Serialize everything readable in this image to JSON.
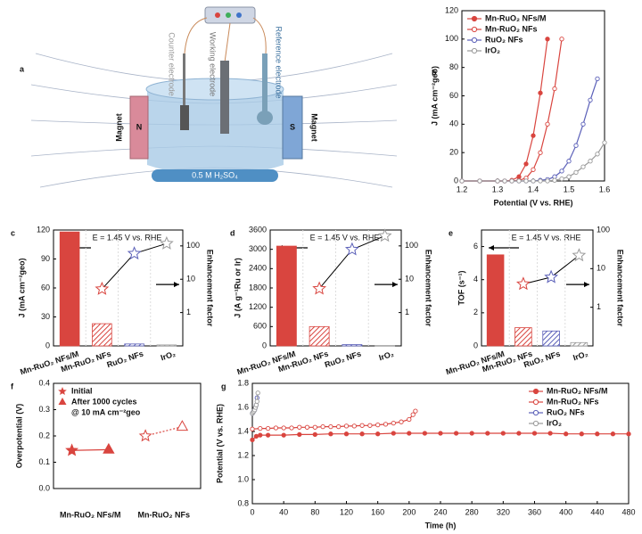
{
  "diagram": {
    "panel_label": "a",
    "counter": "Counter electrode",
    "working": "Working electrode",
    "reference": "Reference electrode",
    "magnet_left": "Magnet",
    "magnet_right": "Magnet",
    "pole_n": "N",
    "pole_s": "S",
    "electrolyte": "0.5 M H₂SO₄"
  },
  "chart_data": [
    {
      "panel_label": "b",
      "type": "line",
      "x_label": "Potential (V vs. RHE)",
      "y_label": "J (mA cm⁻²geo)",
      "x": [
        1.2,
        1.25,
        1.3,
        1.32,
        1.34,
        1.36,
        1.38,
        1.4,
        1.42,
        1.44,
        1.46,
        1.48,
        1.5,
        1.52,
        1.54,
        1.56,
        1.58,
        1.6
      ],
      "xlim": [
        1.2,
        1.6
      ],
      "xticks": [
        1.2,
        1.3,
        1.4,
        1.5,
        1.6
      ],
      "ylim": [
        0,
        120
      ],
      "yticks": [
        0,
        20,
        40,
        60,
        80,
        100,
        120
      ],
      "legend": "upper left",
      "series": [
        {
          "name": "Mn-RuO₂ NFs/M",
          "color": "#d9453f",
          "marker": "filled",
          "values": [
            0,
            0,
            0,
            0,
            0.5,
            3,
            12,
            32,
            62,
            100,
            null,
            null,
            null,
            null,
            null,
            null,
            null,
            null
          ]
        },
        {
          "name": "Mn-RuO₂ NFs",
          "color": "#d9453f",
          "marker": "open",
          "values": [
            0,
            0,
            0,
            0,
            0,
            0.5,
            2,
            8,
            20,
            40,
            65,
            100,
            null,
            null,
            null,
            null,
            null,
            null
          ]
        },
        {
          "name": "RuO₂ NFs",
          "color": "#5a5fb8",
          "marker": "open",
          "values": [
            0,
            0,
            0,
            0,
            0,
            0,
            0,
            0,
            0.5,
            1,
            3,
            7,
            14,
            25,
            40,
            57,
            72,
            null
          ]
        },
        {
          "name": "IrO₂",
          "color": "#9a9a9a",
          "marker": "open",
          "values": [
            0,
            0,
            0,
            0,
            0,
            0,
            0,
            0,
            0,
            0,
            0.5,
            1.5,
            3,
            6,
            10,
            14,
            19,
            27
          ]
        }
      ]
    },
    {
      "panel_label": "c",
      "type": "bar",
      "annotation": "E = 1.45 V vs. RHE",
      "y_label": "J (mA cm⁻²geo)",
      "y2_label": "Enhancement factor",
      "categories": [
        "Mn-RuO₂ NFs/M",
        "Mn-RuO₂ NFs",
        "RuO₂ NFs",
        "IrO₂"
      ],
      "colors": [
        "#d9453f",
        "#d9453f",
        "#5a5fb8",
        "#9a9a9a"
      ],
      "hatched": [
        false,
        true,
        true,
        true
      ],
      "ylim": [
        0,
        120
      ],
      "yticks": [
        0,
        30,
        60,
        90,
        120
      ],
      "y2lim": [
        0.1,
        300
      ],
      "y2ticks": [
        1,
        10,
        100
      ],
      "y2_scale": "log",
      "series": [
        {
          "values": [
            118,
            23,
            2,
            1
          ]
        },
        {
          "axis": "y2",
          "marker": "star",
          "values": [
            null,
            5.1,
            59,
            118
          ]
        }
      ]
    },
    {
      "panel_label": "d",
      "type": "bar",
      "annotation": "E = 1.45 V vs. RHE",
      "y_label": "J (A g⁻¹Ru or Ir)",
      "y2_label": "Enhancement factor",
      "categories": [
        "Mn-RuO₂ NFs/M",
        "Mn-RuO₂ NFs",
        "RuO₂ NFs",
        "IrO₂"
      ],
      "colors": [
        "#d9453f",
        "#d9453f",
        "#5a5fb8",
        "#9a9a9a"
      ],
      "hatched": [
        false,
        true,
        true,
        true
      ],
      "ylim": [
        0,
        3600
      ],
      "yticks": [
        0,
        600,
        1200,
        1800,
        2400,
        3000,
        3600
      ],
      "y2lim": [
        0.1,
        300
      ],
      "y2ticks": [
        1,
        10,
        100
      ],
      "y2_scale": "log",
      "series": [
        {
          "values": [
            3100,
            600,
            40,
            10
          ]
        },
        {
          "axis": "y2",
          "marker": "star",
          "values": [
            null,
            5.2,
            78,
            200
          ]
        }
      ]
    },
    {
      "panel_label": "e",
      "type": "bar",
      "annotation": "E = 1.45 V vs. RHE",
      "y_label": "TOF (s⁻¹)",
      "y2_label": "Enhancement factor",
      "categories": [
        "Mn-RuO₂ NFs/M",
        "Mn-RuO₂ NFs",
        "RuO₂ NFs",
        "IrO₂"
      ],
      "colors": [
        "#d9453f",
        "#d9453f",
        "#5a5fb8",
        "#9a9a9a"
      ],
      "hatched": [
        false,
        true,
        true,
        true
      ],
      "ylim": [
        0,
        7
      ],
      "yticks": [
        0,
        2,
        4,
        6
      ],
      "y2lim": [
        0.1,
        100
      ],
      "y2ticks": [
        1,
        10,
        100
      ],
      "y2_scale": "log",
      "series": [
        {
          "values": [
            5.5,
            1.1,
            0.9,
            0.2
          ]
        },
        {
          "axis": "y2",
          "marker": "star",
          "values": [
            null,
            4,
            6,
            22
          ]
        }
      ]
    },
    {
      "panel_label": "f",
      "type": "scatter",
      "y_label": "Overpotential (V)",
      "note": "@ 10 mA cm⁻²geo",
      "categories": [
        "Mn-RuO₂ NFs/M",
        "Mn-RuO₂ NFs"
      ],
      "filled": [
        true,
        false
      ],
      "ylim": [
        0,
        0.4
      ],
      "yticks": [
        {
          "value": 0,
          "label": "0.0"
        },
        0.1,
        0.2,
        0.3,
        0.4
      ],
      "series": [
        {
          "name": "Initial",
          "marker": "star",
          "color": "#d9453f",
          "values": [
            0.145,
            0.2
          ]
        },
        {
          "name": "After 1000 cycles",
          "marker": "triangle",
          "color": "#d9453f",
          "values": [
            0.148,
            0.235
          ]
        }
      ]
    },
    {
      "panel_label": "g",
      "type": "line",
      "x_label": "Time (h)",
      "y_label": "Potential (V vs. RHE)",
      "xlim": [
        0,
        480
      ],
      "xticks": [
        0,
        40,
        80,
        120,
        160,
        200,
        240,
        280,
        320,
        360,
        400,
        440,
        480
      ],
      "ylim": [
        0.8,
        1.8
      ],
      "yticks": [
        0.8,
        {
          "value": 1,
          "label": "1.0"
        },
        1.2,
        1.4,
        1.6,
        1.8
      ],
      "legend": "upper right",
      "series": [
        {
          "name": "Mn-RuO₂ NFs/M",
          "color": "#d9453f",
          "marker": "filled",
          "x": [
            0,
            5,
            10,
            20,
            40,
            60,
            80,
            100,
            120,
            140,
            160,
            180,
            200,
            220,
            240,
            260,
            280,
            300,
            320,
            340,
            360,
            380,
            400,
            420,
            440,
            460,
            480
          ],
          "values": [
            1.33,
            1.36,
            1.37,
            1.37,
            1.37,
            1.375,
            1.375,
            1.38,
            1.38,
            1.38,
            1.38,
            1.385,
            1.385,
            1.385,
            1.385,
            1.385,
            1.385,
            1.385,
            1.385,
            1.385,
            1.385,
            1.385,
            1.38,
            1.38,
            1.38,
            1.38,
            1.38
          ]
        },
        {
          "name": "Mn-RuO₂ NFs",
          "color": "#d9453f",
          "marker": "open",
          "x": [
            0,
            10,
            20,
            30,
            40,
            50,
            60,
            70,
            80,
            90,
            100,
            110,
            120,
            130,
            140,
            150,
            160,
            170,
            180,
            190,
            200,
            205,
            208
          ],
          "values": [
            1.42,
            1.425,
            1.425,
            1.43,
            1.43,
            1.43,
            1.435,
            1.435,
            1.435,
            1.44,
            1.44,
            1.44,
            1.445,
            1.445,
            1.45,
            1.45,
            1.455,
            1.46,
            1.47,
            1.48,
            1.5,
            1.54,
            1.57
          ]
        },
        {
          "name": "RuO₂ NFs",
          "color": "#5a5fb8",
          "marker": "open",
          "x": [
            0,
            1,
            2,
            3,
            4,
            5,
            6
          ],
          "values": [
            1.55,
            1.56,
            1.57,
            1.58,
            1.6,
            1.62,
            1.68
          ]
        },
        {
          "name": "IrO₂",
          "color": "#9a9a9a",
          "marker": "open",
          "x": [
            0,
            1,
            2,
            3,
            4,
            5,
            6,
            7
          ],
          "values": [
            1.55,
            1.56,
            1.57,
            1.58,
            1.6,
            1.62,
            1.65,
            1.72
          ]
        }
      ]
    }
  ]
}
